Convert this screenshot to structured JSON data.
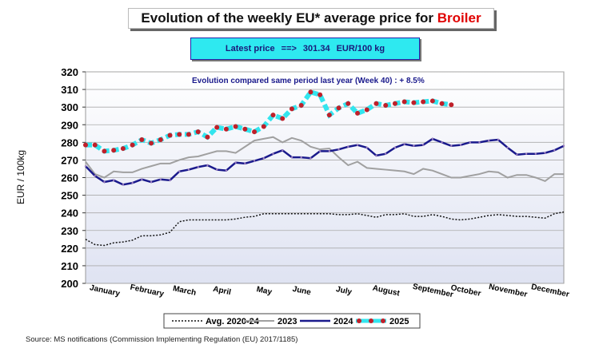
{
  "title": {
    "main": "Evolution of the weekly EU* average price for",
    "highlight": "Broiler"
  },
  "latest": {
    "label": "Latest price",
    "arrow": "==>",
    "value": "301.34",
    "unit": "EUR/100 kg"
  },
  "colors": {
    "avg": "#111111",
    "y2023": "#a0a0a0",
    "y2024": "#1a1a8c",
    "y2025_line": "#33e5ee",
    "y2025_marker": "#c0202a",
    "annotation": "#1a1a8c"
  },
  "source": "Source: MS notifications (Commission Implementing Regulation (EU) 2017/1185)",
  "chart_data": {
    "type": "line",
    "title": "Evolution of the weekly EU* average price for Broiler",
    "ylabel": "EUR / 100kg",
    "ylim": [
      200,
      320
    ],
    "yticks": [
      200,
      210,
      220,
      230,
      240,
      250,
      260,
      270,
      280,
      290,
      300,
      310,
      320
    ],
    "grid": true,
    "annotation": "Evolution  compared same period last year   (Week 40) : + 8.5%",
    "months": [
      "January",
      "February",
      "March",
      "April",
      "May",
      "June",
      "July",
      "August",
      "September",
      "October",
      "November",
      "December"
    ],
    "legend_position": "bottom",
    "series": [
      {
        "name": "Avg. 2020-24",
        "values": [
          225,
          222,
          221.5,
          223,
          223.5,
          224.5,
          227,
          227,
          227.5,
          229,
          235,
          236,
          236,
          236,
          236,
          236,
          236.5,
          237.5,
          238,
          239.5,
          239.5,
          239.5,
          239.5,
          239.5,
          239.5,
          239.5,
          239.5,
          239,
          239,
          239.5,
          238.5,
          237.5,
          239,
          239,
          239.5,
          238,
          238,
          239,
          238,
          236.5,
          236,
          236.5,
          237.5,
          238.5,
          239,
          238.5,
          238,
          238,
          237.5,
          237,
          239.5,
          240.5
        ]
      },
      {
        "name": "2023",
        "values": [
          269,
          262,
          260,
          263.5,
          263,
          263,
          265,
          266.5,
          268,
          268,
          270,
          271.5,
          272,
          273.5,
          275,
          275,
          274,
          277.5,
          281,
          282,
          283,
          280,
          282.5,
          281,
          277.5,
          276,
          276.5,
          271.5,
          267,
          269,
          265.5,
          265,
          264.5,
          264,
          263.5,
          262,
          265,
          264,
          262,
          260,
          260,
          261,
          262,
          263.5,
          263,
          260,
          261.5,
          261.5,
          260,
          258,
          262,
          262
        ]
      },
      {
        "name": "2024",
        "values": [
          266.5,
          261,
          257.5,
          258.5,
          256,
          257,
          259,
          257.5,
          259,
          258.5,
          263.5,
          264.5,
          266,
          267,
          264.5,
          264,
          268.5,
          268,
          269.5,
          271,
          273.5,
          275.5,
          271.5,
          271.5,
          271,
          275,
          275,
          276,
          277.5,
          278.5,
          277,
          272.5,
          273.5,
          277,
          279,
          278,
          278.5,
          282,
          280,
          278,
          278.5,
          280,
          280,
          281,
          281.5,
          277,
          273,
          273.5,
          273.5,
          274,
          275.5,
          278
        ]
      },
      {
        "name": "2025",
        "values": [
          278.5,
          278.5,
          275,
          275.5,
          276.5,
          278.5,
          281.5,
          279.5,
          281.5,
          284,
          284.5,
          284.5,
          286,
          283,
          288.5,
          287.5,
          289,
          287.5,
          286,
          289,
          295.5,
          293.5,
          299,
          301,
          308.5,
          307,
          295.5,
          299.5,
          302,
          296.5,
          298.5,
          302,
          301,
          302,
          303,
          302.5,
          303,
          303.5,
          302,
          301.34
        ]
      }
    ]
  }
}
